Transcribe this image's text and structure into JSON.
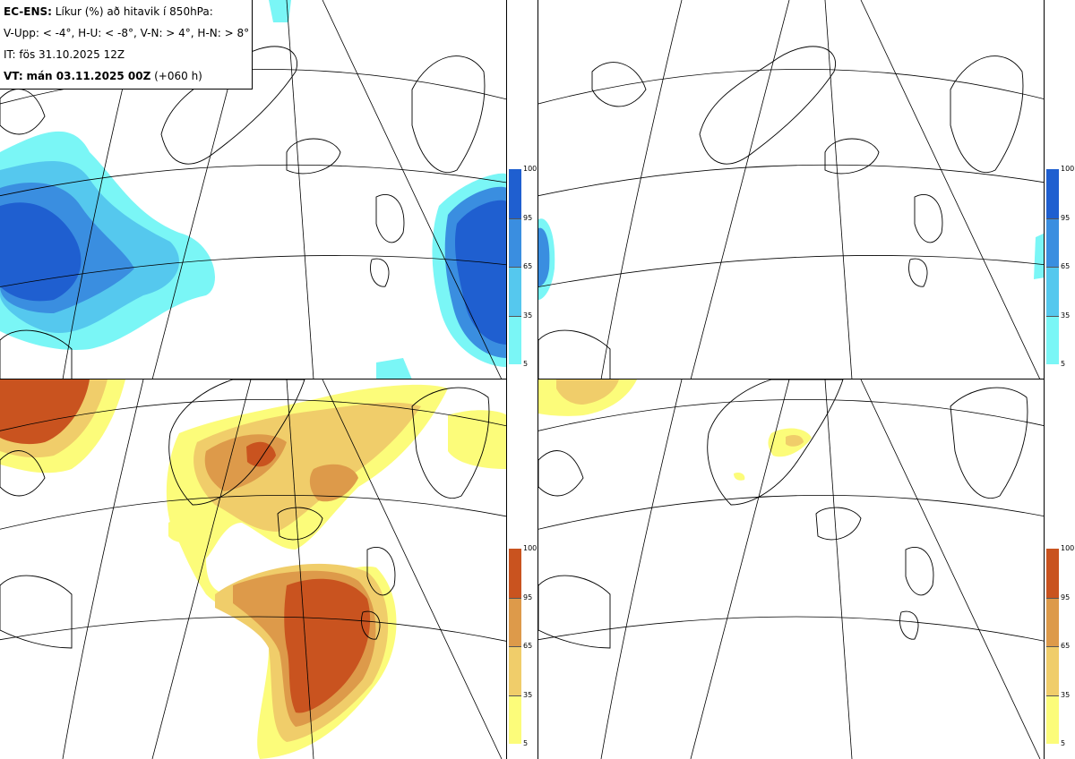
{
  "header": {
    "model": "EC-ENS:",
    "title_rest": "Líkur (%) að hitavik í 850hPa:",
    "thresholds": "V-Upp: < -4°, H-U: < -8°, V-N: > 4°, H-N: > 8°",
    "init_time": "IT: fös 31.10.2025 12Z",
    "valid_label": "VT:",
    "valid_time": "mán 03.11.2025 00Z",
    "lead": "(+060 h)"
  },
  "panels": [
    {
      "id": "cold-4",
      "quantity": "V-Upp",
      "threshold": "< -4°"
    },
    {
      "id": "cold-8",
      "quantity": "H-U",
      "threshold": "< -8°"
    },
    {
      "id": "warm-4",
      "quantity": "V-N",
      "threshold": "> 4°"
    },
    {
      "id": "warm-8",
      "quantity": "H-N",
      "threshold": "> 8°"
    }
  ],
  "colorbar_ticks": [
    "100",
    "95",
    "65",
    "35",
    "5"
  ],
  "colors": {
    "cold_levels": [
      "#7af6f6",
      "#55c8ee",
      "#3a8ee0",
      "#1f5fd0"
    ],
    "warm_levels": [
      "#fcfc7a",
      "#f0cd6a",
      "#dd9a4a",
      "#c9531f"
    ],
    "coast": "#000000",
    "grid": "#000000"
  }
}
